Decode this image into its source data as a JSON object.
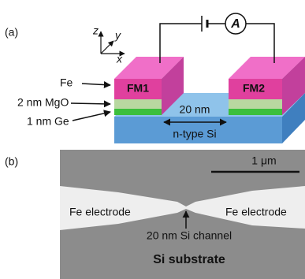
{
  "panel_a": {
    "label": "(a)",
    "axes": {
      "z": "z",
      "y": "y",
      "x": "x"
    },
    "ammeter": "A",
    "layer_labels": [
      "Fe",
      "2 nm MgO",
      "1 nm Ge"
    ],
    "electrodes": [
      "FM1",
      "FM2"
    ],
    "gap": "20 nm",
    "channel": "n-type Si"
  },
  "panel_b": {
    "label": "(b)",
    "scale_bar": "1 μm",
    "electrodes": [
      "Fe electrode",
      "Fe electrode"
    ],
    "channel": "20 nm Si channel",
    "substrate": "Si substrate"
  }
}
